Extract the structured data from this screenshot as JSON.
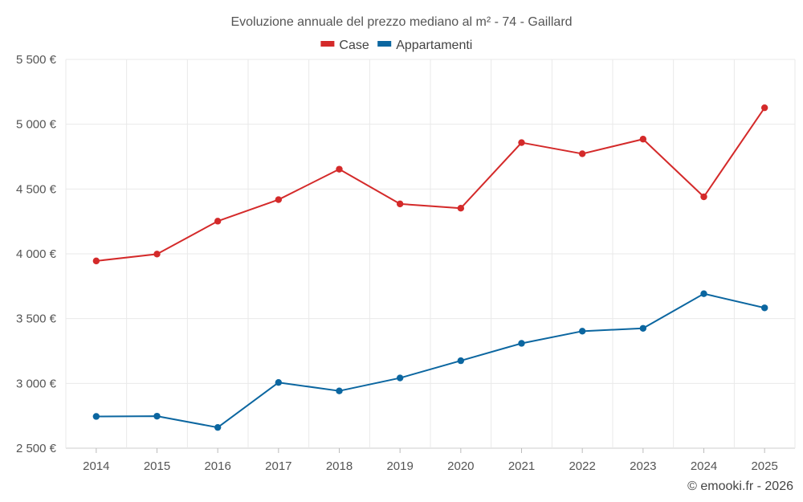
{
  "chart_data": {
    "type": "line",
    "title": "Evoluzione annuale del prezzo mediano al m² - 74 - Gaillard",
    "categories": [
      "2014",
      "2015",
      "2016",
      "2017",
      "2018",
      "2019",
      "2020",
      "2021",
      "2022",
      "2023",
      "2024",
      "2025"
    ],
    "series": [
      {
        "name": "Case",
        "color": "#d42a2a",
        "values": [
          3945,
          3998,
          4252,
          4418,
          4653,
          4385,
          4352,
          4858,
          4772,
          4885,
          4440,
          5127
        ]
      },
      {
        "name": "Appartamenti",
        "color": "#0b66a0",
        "values": [
          2745,
          2747,
          2660,
          3007,
          2942,
          3042,
          3175,
          3309,
          3403,
          3425,
          3692,
          3583
        ]
      }
    ],
    "ylim": [
      2500,
      5500
    ],
    "yticks": [
      2500,
      3000,
      3500,
      4000,
      4500,
      5000,
      5500
    ],
    "ytick_labels": [
      "2 500 €",
      "3 000 €",
      "3 500 €",
      "4 000 €",
      "4 500 €",
      "5 000 €",
      "5 500 €"
    ],
    "legend_position": "top-center",
    "grid": true
  },
  "copyright": "© emooki.fr - 2026"
}
